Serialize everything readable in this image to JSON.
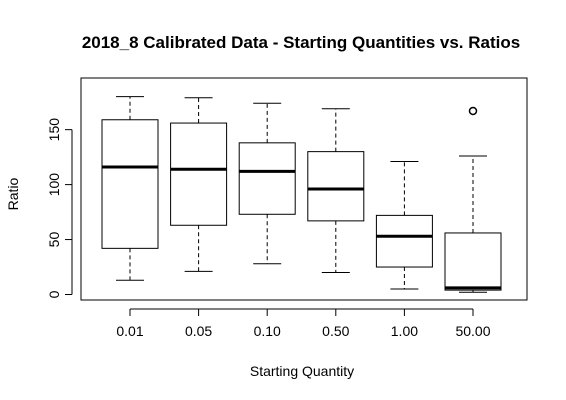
{
  "chart_data": {
    "type": "boxplot",
    "title": "2018_8 Calibrated Data - Starting Quantities vs. Ratios",
    "xlabel": "Starting Quantity",
    "ylabel": "Ratio",
    "categories": [
      "0.01",
      "0.05",
      "0.10",
      "0.50",
      "1.00",
      "50.00"
    ],
    "y_ticks": [
      0,
      50,
      100,
      150
    ],
    "ylim": [
      -5,
      197
    ],
    "grid": false,
    "legend": "none",
    "boxes": [
      {
        "label": "0.01",
        "whisker_low": 13,
        "q1": 42,
        "median": 116,
        "q3": 159,
        "whisker_high": 180,
        "outliers": []
      },
      {
        "label": "0.05",
        "whisker_low": 21,
        "q1": 63,
        "median": 114,
        "q3": 156,
        "whisker_high": 179,
        "outliers": []
      },
      {
        "label": "0.10",
        "whisker_low": 28,
        "q1": 73,
        "median": 112,
        "q3": 138,
        "whisker_high": 174,
        "outliers": []
      },
      {
        "label": "0.50",
        "whisker_low": 20,
        "q1": 67,
        "median": 96,
        "q3": 130,
        "whisker_high": 169,
        "outliers": []
      },
      {
        "label": "1.00",
        "whisker_low": 5,
        "q1": 25,
        "median": 53,
        "q3": 72,
        "whisker_high": 121,
        "outliers": []
      },
      {
        "label": "50.00",
        "whisker_low": 2,
        "q1": 4,
        "median": 6,
        "q3": 56,
        "whisker_high": 126,
        "outliers": [
          167
        ]
      }
    ]
  }
}
